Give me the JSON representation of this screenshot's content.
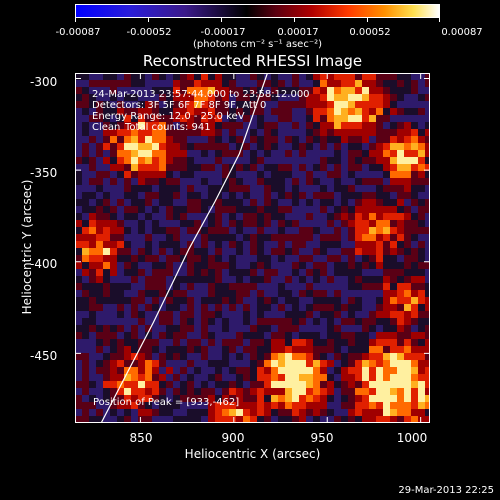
{
  "colorbar": {
    "ticks": [
      "-0.00087",
      "-0.00052",
      "-0.00017",
      "0.00017",
      "0.00052",
      "0.00087"
    ],
    "units": "(photons cm⁻² s⁻¹ asec⁻²)",
    "range": [
      -0.00087,
      0.00087
    ]
  },
  "chart_data": {
    "type": "heatmap",
    "title": "Reconstructed RHESSI Image",
    "xlabel": "Heliocentric X (arcsec)",
    "ylabel": "Heliocentric Y (arcsec)",
    "xlim": [
      815,
      1005
    ],
    "ylim": [
      -488,
      -297
    ],
    "xticks": [
      "850",
      "900",
      "950",
      "1000"
    ],
    "yticks": [
      "-300",
      "-350",
      "-400",
      "-450"
    ],
    "annotations": [
      "24-Mar-2013 23:57:44.000 to 23:58:12.000",
      "Detectors: 3F 5F 6F 7F 8F 9F, Att 0",
      "Energy Range: 12.0 - 25.0 keV",
      "Clean",
      "Total counts: 941"
    ],
    "peak_label": "Position of Peak = [933,-462]",
    "peak": [
      933,
      -462
    ],
    "limb_curve": [
      [
        829,
        -488
      ],
      [
        857,
        -433
      ],
      [
        876,
        -393
      ],
      [
        890,
        -367
      ],
      [
        903,
        -341
      ],
      [
        918,
        -297
      ]
    ]
  },
  "timestamp": "29-Mar-2013 22:25"
}
